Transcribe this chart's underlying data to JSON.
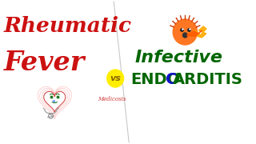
{
  "bg_color": "#ffffff",
  "title_left_line1": "Rheumatic",
  "title_left_line2": "Fever",
  "title_left_color": "#cc1111",
  "vs_text": "vs",
  "vs_bg": "#ffee00",
  "vs_text_color": "#886600",
  "title_right_line1": "Infective",
  "title_right_line2_part1": "ENDO",
  "title_right_line2_part2": "C",
  "title_right_line2_part3": "ARDITIS",
  "title_right_color": "#006600",
  "title_right_c_color": "#1111cc",
  "watermark": "Medicosis",
  "watermark_color": "#cc2222",
  "divider_color": "#bbbbbb",
  "heart_pink": "#ffaaaa",
  "heart_red": "#cc3333",
  "heart_green": "#227722",
  "face_color": "#ff7722",
  "face_hair_color": "#cc3300",
  "flame_color1": "#ffaa00",
  "flame_color2": "#ff5500"
}
